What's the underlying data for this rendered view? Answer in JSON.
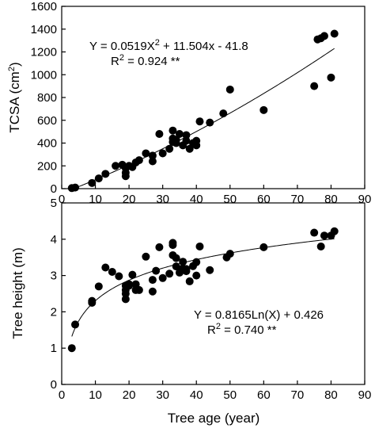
{
  "chart_data": [
    {
      "type": "scatter",
      "ylabel_main": "TCSA (cm",
      "ylabel_sup": "2",
      "ylabel_end": ")",
      "xlim": [
        0,
        90
      ],
      "ylim": [
        0,
        1600
      ],
      "xticks": [
        "0",
        "10",
        "20",
        "30",
        "40",
        "50",
        "60",
        "70",
        "80",
        "90"
      ],
      "yticks": [
        "0",
        "200",
        "400",
        "600",
        "800",
        "1000",
        "1200",
        "1400",
        "1600"
      ],
      "equation": "Y =  0.0519X",
      "equation_sup": "2",
      "equation_rest": " + 11.504x - 41.8",
      "r2_prefix": "R",
      "r2_sup": "2",
      "r2_rest": " = 0.924 **",
      "fit": {
        "kind": "quadratic",
        "a": 0.0519,
        "b": 11.504,
        "c": -41.8,
        "x_range": [
          3,
          81
        ]
      },
      "x": [
        3,
        4,
        9,
        11,
        13,
        16,
        18,
        19,
        19,
        19,
        20,
        21,
        22,
        23,
        25,
        27,
        27,
        29,
        30,
        32,
        33,
        33,
        33,
        34,
        34,
        35,
        36,
        37,
        37,
        38,
        39,
        40,
        40,
        41,
        44,
        48,
        50,
        60,
        75,
        76,
        77,
        78,
        80,
        81
      ],
      "y": [
        5,
        10,
        50,
        90,
        130,
        200,
        210,
        180,
        140,
        110,
        200,
        190,
        230,
        250,
        310,
        240,
        290,
        480,
        310,
        350,
        510,
        440,
        410,
        430,
        400,
        480,
        380,
        470,
        420,
        350,
        400,
        420,
        380,
        590,
        580,
        660,
        870,
        690,
        900,
        1310,
        1320,
        1340,
        975,
        1360
      ]
    },
    {
      "type": "scatter",
      "ylabel": "Tree height (m)",
      "xlabel": "Tree age (year)",
      "xlim": [
        0,
        90
      ],
      "ylim": [
        0,
        5
      ],
      "xticks": [
        "0",
        "10",
        "20",
        "30",
        "40",
        "50",
        "60",
        "70",
        "80",
        "90"
      ],
      "yticks": [
        "0",
        "1",
        "2",
        "3",
        "4",
        "5"
      ],
      "equation": "Y = 0.8165Ln(X) + 0.426",
      "r2_prefix": "R",
      "r2_sup": "2",
      "r2_rest": " = 0.740 **",
      "fit": {
        "kind": "log",
        "a": 0.8165,
        "b": 0.426,
        "x_range": [
          3,
          81
        ]
      },
      "x": [
        3,
        4,
        9,
        9,
        11,
        13,
        15,
        17,
        19,
        19,
        19,
        19,
        20,
        20,
        21,
        22,
        22,
        23,
        25,
        27,
        27,
        28,
        29,
        30,
        32,
        33,
        33,
        33,
        34,
        34,
        35,
        36,
        36,
        37,
        37,
        38,
        39,
        40,
        40,
        41,
        44,
        49,
        50,
        60,
        75,
        77,
        78,
        80,
        81
      ],
      "y": [
        1.0,
        1.65,
        2.25,
        2.3,
        2.7,
        3.22,
        3.1,
        2.98,
        2.6,
        2.5,
        2.35,
        2.72,
        2.76,
        2.72,
        3.02,
        2.6,
        2.76,
        2.6,
        3.52,
        2.88,
        2.56,
        3.13,
        3.78,
        2.93,
        3.05,
        3.9,
        3.84,
        3.56,
        3.25,
        3.48,
        3.08,
        3.38,
        3.2,
        3.18,
        3.12,
        2.84,
        3.26,
        3.0,
        3.37,
        3.8,
        3.15,
        3.5,
        3.6,
        3.78,
        4.18,
        3.8,
        4.1,
        4.1,
        4.22
      ]
    }
  ]
}
